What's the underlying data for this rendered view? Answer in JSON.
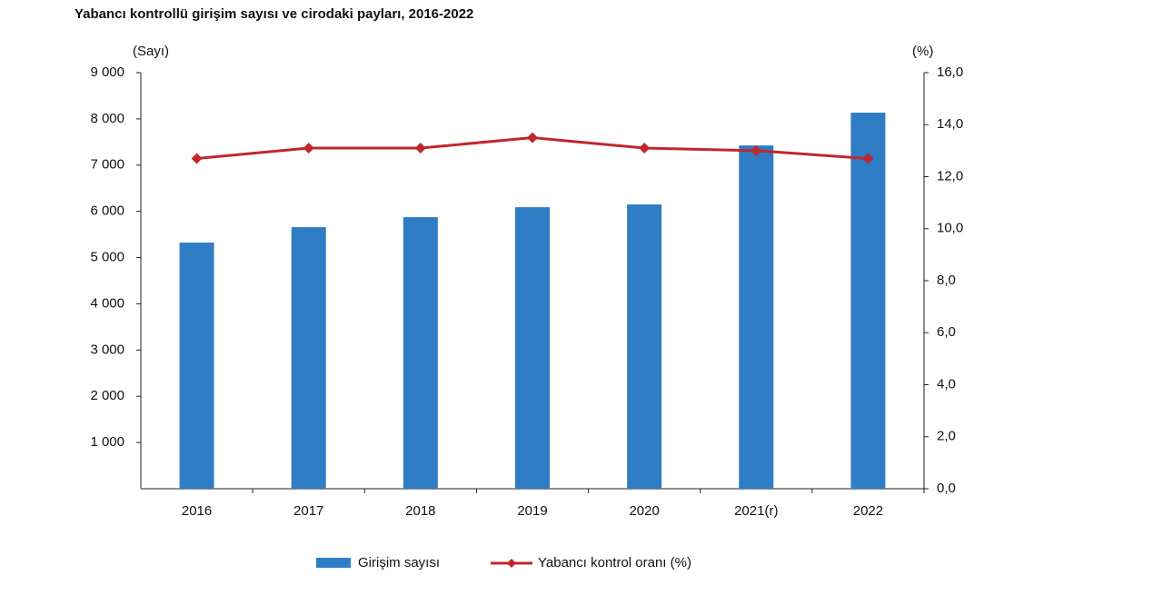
{
  "chart_data": {
    "type": "bar",
    "title": "Yabancı kontrollü girişim sayısı ve cirodaki payları, 2016-2022",
    "y_label": "(Sayı)",
    "y2_label": "(%)",
    "categories": [
      "2016",
      "2017",
      "2018",
      "2019",
      "2020",
      "2021(r)",
      "2022"
    ],
    "series": [
      {
        "name": "Girişim sayısı",
        "type": "bar",
        "color": "#2e7dc5",
        "values": [
          5324,
          5658,
          5874,
          6090,
          6149,
          7426,
          8134
        ]
      },
      {
        "name": "Yabancı kontrol oranı (%)",
        "type": "line",
        "color": "#c0272d",
        "axis": "y2",
        "values": [
          12.7,
          13.1,
          13.1,
          13.5,
          13.1,
          13.0,
          12.7
        ]
      }
    ],
    "ylim": [
      0,
      9000
    ],
    "yticks": [
      {
        "value": 1000,
        "label": "1 000"
      },
      {
        "value": 2000,
        "label": "2 000"
      },
      {
        "value": 3000,
        "label": "3 000"
      },
      {
        "value": 4000,
        "label": "4 000"
      },
      {
        "value": 5000,
        "label": "5 000"
      },
      {
        "value": 6000,
        "label": "6 000"
      },
      {
        "value": 7000,
        "label": "7 000"
      },
      {
        "value": 8000,
        "label": "8 000"
      },
      {
        "value": 9000,
        "label": "9 000"
      }
    ],
    "y2lim": [
      0,
      16
    ],
    "y2ticks": [
      {
        "value": 0,
        "label": "0,0"
      },
      {
        "value": 2,
        "label": "2,0"
      },
      {
        "value": 4,
        "label": "4,0"
      },
      {
        "value": 6,
        "label": "6,0"
      },
      {
        "value": 8,
        "label": "8,0"
      },
      {
        "value": 10,
        "label": "10,0"
      },
      {
        "value": 12,
        "label": "12,0"
      },
      {
        "value": 14,
        "label": "14,0"
      },
      {
        "value": 16,
        "label": "16,0"
      }
    ],
    "grid": false
  }
}
